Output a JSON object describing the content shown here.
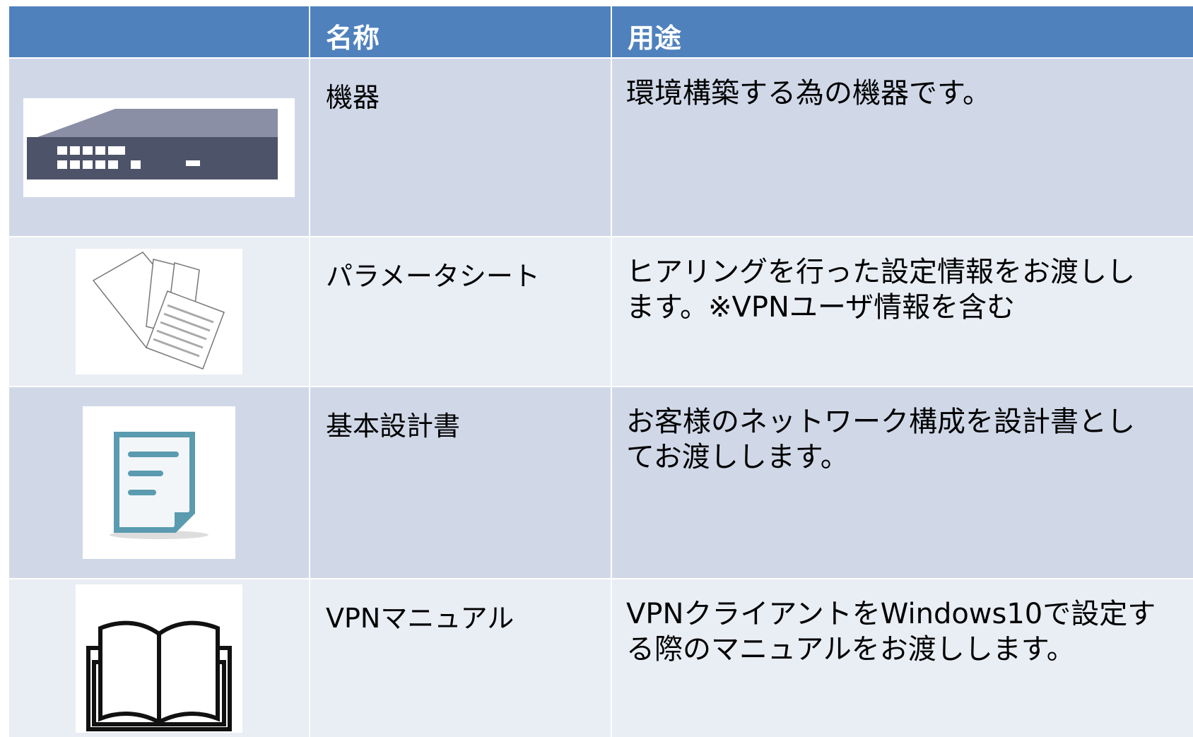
{
  "table": {
    "header": [
      "名称",
      "用途"
    ],
    "rows": [
      {
        "name": "機器",
        "usage": [
          "環境構築する為の機器です。"
        ]
      },
      {
        "name": "パラメータシート",
        "usage": [
          "ヒアリングを行った設定情報をお渡しし",
          "ます。※VPNユーザ情報を含む"
        ]
      },
      {
        "name": "基本設計書",
        "usage": [
          "お客様のネットワーク構成を設計書とし",
          "てお渡しします。"
        ]
      },
      {
        "name": "VPNマニュアル",
        "usage": [
          "VPNクライアントをWindows10で設定す",
          "る際のマニュアルをお渡しします。"
        ]
      }
    ]
  }
}
